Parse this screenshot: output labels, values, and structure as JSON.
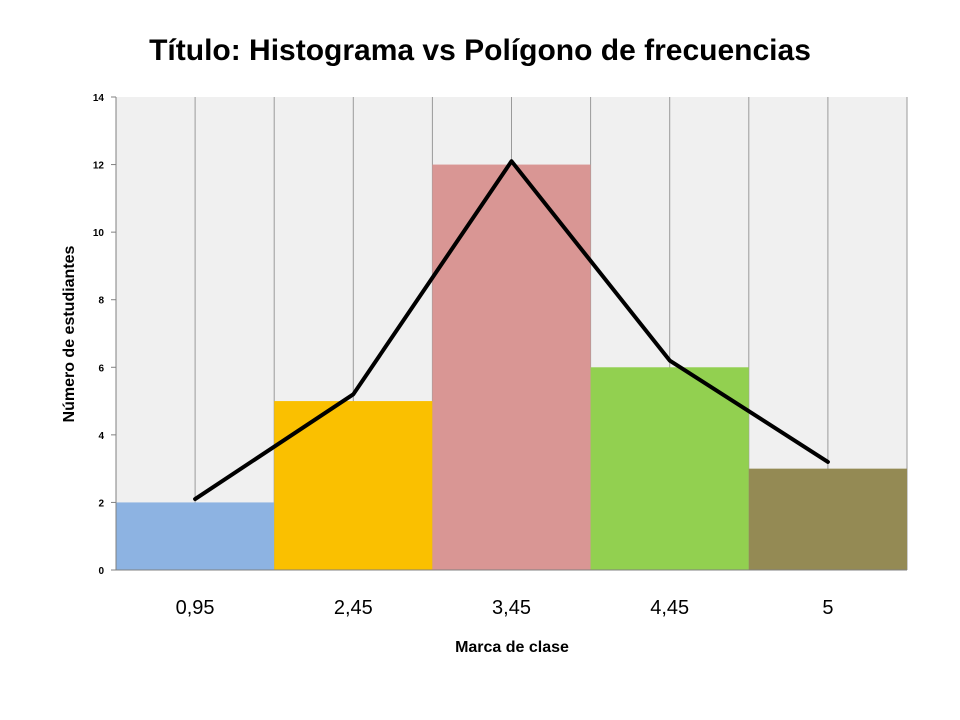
{
  "chart_data": {
    "type": "bar",
    "title": "Título: Histograma vs Polígono de frecuencias",
    "xlabel": "Marca de clase",
    "ylabel": "Número de estudiantes",
    "categories": [
      "0,95",
      "2,45",
      "3,45",
      "4,45",
      "5"
    ],
    "series": [
      {
        "type": "bar",
        "values": [
          2,
          5,
          12,
          6,
          3
        ],
        "colors": [
          "#8DB3E2",
          "#FAC000",
          "#D99694",
          "#92D050",
          "#948A54"
        ]
      },
      {
        "type": "line",
        "values": [
          2.1,
          5.2,
          12.1,
          6.2,
          3.2
        ],
        "color": "#000000"
      }
    ],
    "ylim": [
      0,
      14
    ],
    "yticks": [
      0,
      2,
      4,
      6,
      8,
      10,
      12,
      14
    ],
    "grid": "vertical",
    "background": "#F0F0F0"
  }
}
